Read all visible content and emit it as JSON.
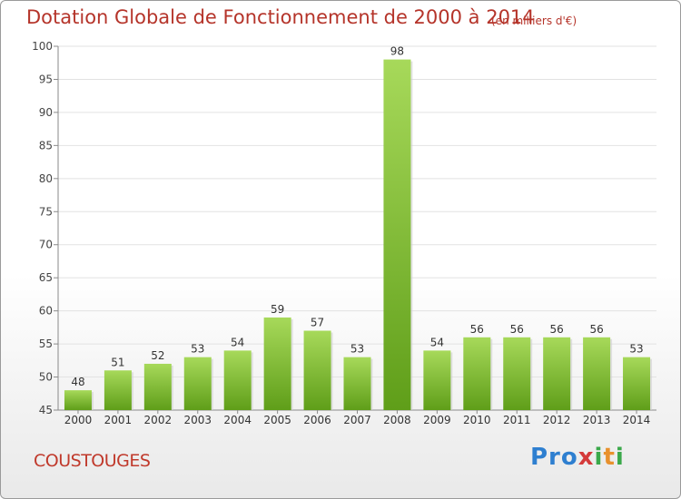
{
  "header": {
    "title": "Dotation Globale de Fonctionnement de 2000 à 2014",
    "subtitle": "(en milliers d'€)"
  },
  "footer": {
    "commune": "COUSTOUGES",
    "logo_text": "Proxiti"
  },
  "colors": {
    "title": "#b5342a",
    "bar_light": "#a7d95a",
    "bar_dark": "#5f9e19",
    "axis": "#8a8a8a",
    "grid": "#e2e2e2"
  },
  "chart_data": {
    "type": "bar",
    "categories": [
      "2000",
      "2001",
      "2002",
      "2003",
      "2004",
      "2005",
      "2006",
      "2007",
      "2008",
      "2009",
      "2010",
      "2011",
      "2012",
      "2013",
      "2014"
    ],
    "values": [
      48,
      51,
      52,
      53,
      54,
      59,
      57,
      53,
      98,
      54,
      56,
      56,
      56,
      56,
      53
    ],
    "ylim": [
      45,
      100
    ],
    "yticks": [
      45,
      50,
      55,
      60,
      65,
      70,
      75,
      80,
      85,
      90,
      95,
      100
    ],
    "grid": true
  }
}
